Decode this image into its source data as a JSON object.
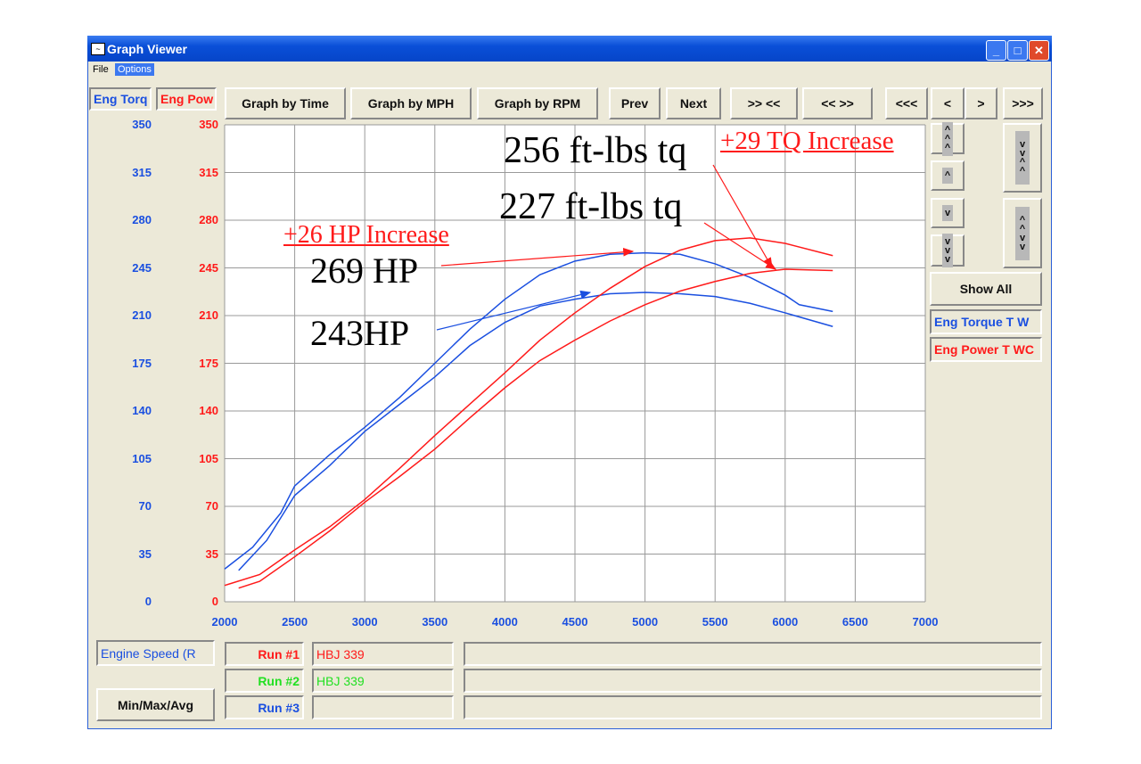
{
  "window": {
    "title": "Graph Viewer",
    "menu": [
      "File",
      "Options"
    ]
  },
  "left_headers": {
    "torque": "Eng Torq",
    "power": "Eng Pow"
  },
  "toolbar": [
    "Graph by Time",
    "Graph by MPH",
    "Graph by RPM",
    "Prev",
    "Next",
    ">> <<",
    "<< >>",
    "<<<",
    "<",
    ">",
    ">>>"
  ],
  "side": {
    "show_all": "Show All",
    "legend": [
      "Eng Torque T W",
      "Eng Power T WC"
    ]
  },
  "bottom": {
    "x_channel": "Engine Speed (R",
    "minmax": "Min/Max/Avg",
    "runs": [
      {
        "label": "Run #1",
        "name": "HBJ 339",
        "color": "#ff1a1a"
      },
      {
        "label": "Run #2",
        "name": "HBJ 339",
        "color": "#22e022"
      },
      {
        "label": "Run #3",
        "name": "",
        "color": "#1a4fe0"
      }
    ]
  },
  "annotations": {
    "tq_after": "256 ft-lbs tq",
    "tq_increase": "+29 TQ Increase",
    "tq_before": "227 ft-lbs tq",
    "hp_increase": "+26 HP Increase",
    "hp_after": "269 HP",
    "hp_before": "243HP"
  },
  "chart_data": {
    "type": "line",
    "xlim": [
      2000,
      7000
    ],
    "ylim": [
      0,
      350
    ],
    "grid": true,
    "x_ticks": [
      2000,
      2500,
      3000,
      3500,
      4000,
      4500,
      5000,
      5500,
      6000,
      6500,
      7000
    ],
    "y_ticks": [
      0,
      35,
      70,
      105,
      140,
      175,
      210,
      245,
      280,
      315,
      350
    ],
    "colors": {
      "torque": "#1a4fe0",
      "power": "#ff1a1a"
    },
    "series": [
      {
        "color": "#1a4fe0",
        "x": [
          2000,
          2200,
          2400,
          2500,
          2750,
          3000,
          3250,
          3500,
          3750,
          4000,
          4250,
          4500,
          4750,
          5000,
          5250,
          5500,
          5750,
          6000,
          6100,
          6340
        ],
        "y": [
          24,
          40,
          65,
          85,
          108,
          128,
          150,
          175,
          200,
          222,
          240,
          250,
          255,
          256,
          255,
          248,
          238,
          225,
          218,
          213
        ]
      },
      {
        "color": "#1a4fe0",
        "x": [
          2100,
          2300,
          2500,
          2750,
          3000,
          3250,
          3500,
          3750,
          4000,
          4250,
          4500,
          4750,
          5000,
          5250,
          5500,
          5750,
          6000,
          6340
        ],
        "y": [
          23,
          45,
          78,
          100,
          125,
          145,
          165,
          188,
          205,
          217,
          222,
          226,
          227,
          226,
          224,
          219,
          212,
          202
        ]
      },
      {
        "color": "#ff1a1a",
        "x": [
          2000,
          2250,
          2500,
          2750,
          3000,
          3250,
          3500,
          3750,
          4000,
          4250,
          4500,
          4750,
          5000,
          5250,
          5500,
          5750,
          6000,
          6340
        ],
        "y": [
          12,
          20,
          38,
          55,
          75,
          98,
          122,
          145,
          168,
          192,
          212,
          230,
          246,
          258,
          265,
          267,
          263,
          254
        ]
      },
      {
        "color": "#ff1a1a",
        "x": [
          2100,
          2250,
          2500,
          2750,
          3000,
          3250,
          3500,
          3750,
          4000,
          4250,
          4500,
          4750,
          5000,
          5250,
          5500,
          5750,
          6000,
          6340
        ],
        "y": [
          10,
          15,
          33,
          52,
          73,
          92,
          112,
          135,
          157,
          177,
          192,
          206,
          218,
          228,
          235,
          241,
          244,
          243
        ]
      }
    ]
  }
}
